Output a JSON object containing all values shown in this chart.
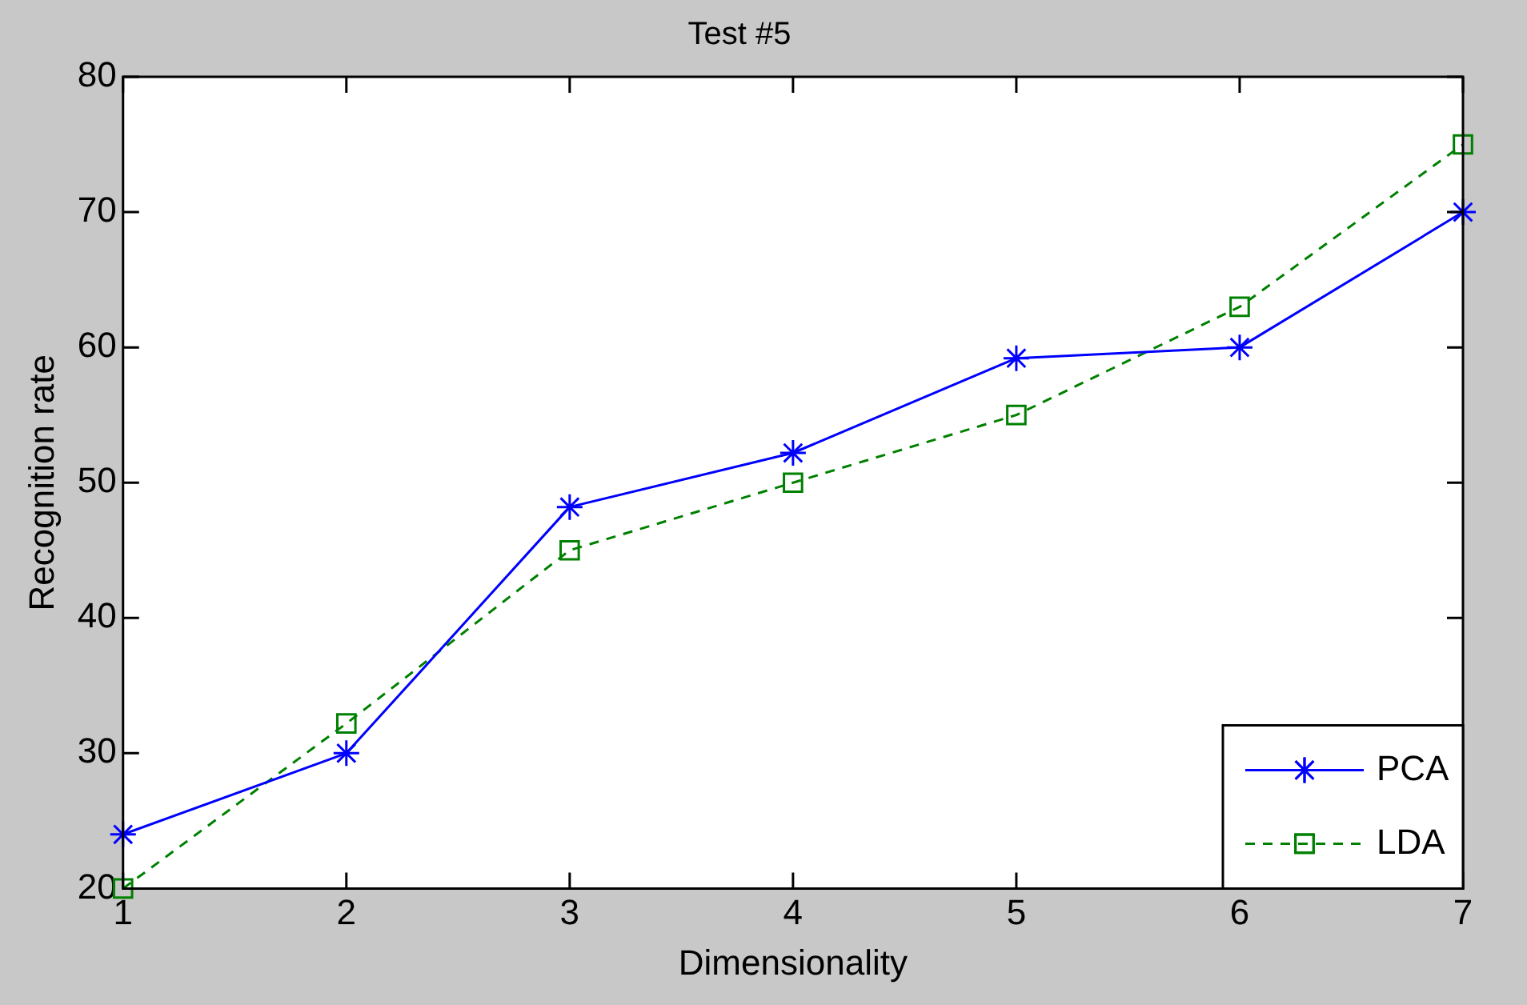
{
  "chart_data": {
    "type": "line",
    "title": "Test #5",
    "xlabel": "Dimensionality",
    "ylabel": "Recognition rate",
    "x": [
      1,
      2,
      3,
      4,
      5,
      6,
      7
    ],
    "series": [
      {
        "name": "PCA",
        "color": "#0000ff",
        "values": [
          24,
          30,
          48.2,
          52.2,
          59.2,
          60,
          70
        ],
        "marker": "cross",
        "line_style": "solid"
      },
      {
        "name": "LDA",
        "color": "#008000",
        "values": [
          20,
          32.2,
          45,
          50,
          55,
          63,
          75
        ],
        "marker": "square",
        "line_style": "dashed"
      }
    ],
    "xlim": [
      1,
      7
    ],
    "xticks": [
      1,
      2,
      3,
      4,
      5,
      6,
      7
    ],
    "ylim": [
      20,
      80
    ],
    "yticks": [
      20,
      30,
      40,
      50,
      60,
      70,
      80
    ],
    "grid": false,
    "legend": "bottom right"
  }
}
